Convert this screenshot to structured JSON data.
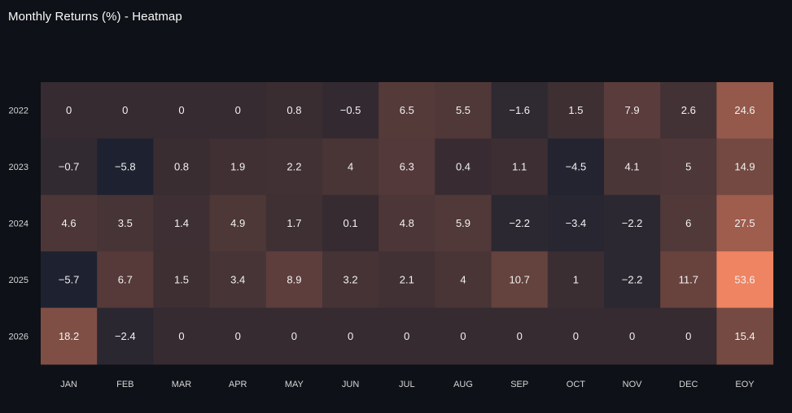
{
  "chart_data": {
    "type": "heatmap",
    "title": "Monthly Returns (%) - Heatmap",
    "x_labels": [
      "JAN",
      "FEB",
      "MAR",
      "APR",
      "MAY",
      "JUN",
      "JUL",
      "AUG",
      "SEP",
      "OCT",
      "NOV",
      "DEC",
      "EOY"
    ],
    "y_labels": [
      "2022",
      "2023",
      "2024",
      "2025",
      "2026"
    ],
    "values": [
      [
        0,
        0,
        0,
        0,
        0.8,
        -0.5,
        6.5,
        5.5,
        -1.6,
        1.5,
        7.9,
        2.6,
        24.6
      ],
      [
        -0.7,
        -5.8,
        0.8,
        1.9,
        2.2,
        4,
        6.3,
        0.4,
        1.1,
        -4.5,
        4.1,
        5,
        14.9
      ],
      [
        4.6,
        3.5,
        1.4,
        4.9,
        1.7,
        0.1,
        4.8,
        5.9,
        -2.2,
        -3.4,
        -2.2,
        6,
        27.5
      ],
      [
        -5.7,
        6.7,
        1.5,
        3.4,
        8.9,
        3.2,
        2.1,
        4,
        10.7,
        1,
        -2.2,
        11.7,
        53.6
      ],
      [
        18.2,
        -2.4,
        0,
        0,
        0,
        0,
        0,
        0,
        0,
        0,
        0,
        0,
        15.4
      ]
    ],
    "value_labels": [
      [
        "0",
        "0",
        "0",
        "0",
        "0.8",
        "−0.5",
        "6.5",
        "5.5",
        "−1.6",
        "1.5",
        "7.9",
        "2.6",
        "24.6"
      ],
      [
        "−0.7",
        "−5.8",
        "0.8",
        "1.9",
        "2.2",
        "4",
        "6.3",
        "0.4",
        "1.1",
        "−4.5",
        "4.1",
        "5",
        "14.9"
      ],
      [
        "4.6",
        "3.5",
        "1.4",
        "4.9",
        "1.7",
        "0.1",
        "4.8",
        "5.9",
        "−2.2",
        "−3.4",
        "−2.2",
        "6",
        "27.5"
      ],
      [
        "−5.7",
        "6.7",
        "1.5",
        "3.4",
        "8.9",
        "3.2",
        "2.1",
        "4",
        "10.7",
        "1",
        "−2.2",
        "11.7",
        "53.6"
      ],
      [
        "18.2",
        "−2.4",
        "0",
        "0",
        "0",
        "0",
        "0",
        "0",
        "0",
        "0",
        "0",
        "0",
        "15.4"
      ]
    ],
    "color_scale": {
      "min_value": -5.8,
      "max_value": 53.6,
      "low_color": "#1e2230",
      "zero_color": "#352b31",
      "high_color": "#ee8462"
    },
    "background_color": "#0e1117"
  }
}
